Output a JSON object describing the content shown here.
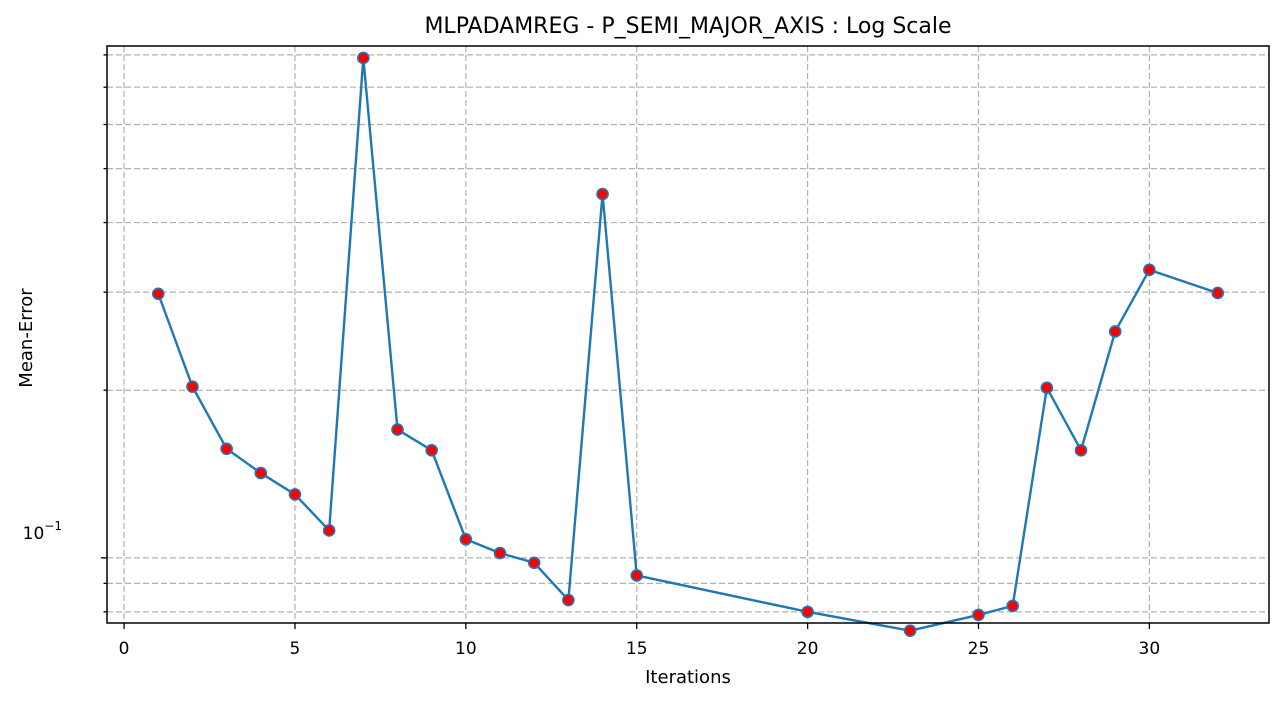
{
  "chart_data": {
    "type": "line",
    "title": "MLPADAMREG - P_SEMI_MAJOR_AXIS : Log Scale",
    "xlabel": "Iterations",
    "ylabel": "Mean-Error",
    "yscale": "log",
    "xlim": [
      -0.5,
      33.5
    ],
    "ylim": [
      0.0764,
      0.83
    ],
    "x_ticks": [
      0,
      5,
      10,
      15,
      20,
      25,
      30
    ],
    "x_tick_labels": [
      "0",
      "5",
      "10",
      "15",
      "20",
      "25",
      "30"
    ],
    "y_major_ticks": [
      0.1
    ],
    "y_major_tick_labels": [
      "10",
      "−1"
    ],
    "y_minor_ticks": [
      0.08,
      0.09,
      0.2,
      0.3,
      0.4,
      0.5,
      0.6,
      0.7,
      0.8
    ],
    "grid": true,
    "line_color": "#1f77b4",
    "marker_face_color": "#ff0000",
    "marker_edge_color": "#1f77b4",
    "series": [
      {
        "x": [
          1,
          2,
          3,
          4,
          5,
          6,
          7,
          8,
          9,
          10,
          11,
          12,
          13,
          14,
          15,
          20,
          23,
          25,
          26,
          27,
          28,
          29,
          30,
          32
        ],
        "y": [
          0.298,
          0.203,
          0.157,
          0.142,
          0.13,
          0.112,
          0.79,
          0.17,
          0.156,
          0.108,
          0.102,
          0.098,
          0.084,
          0.45,
          0.093,
          0.08,
          0.074,
          0.079,
          0.082,
          0.202,
          0.156,
          0.255,
          0.329,
          0.299
        ]
      }
    ]
  }
}
